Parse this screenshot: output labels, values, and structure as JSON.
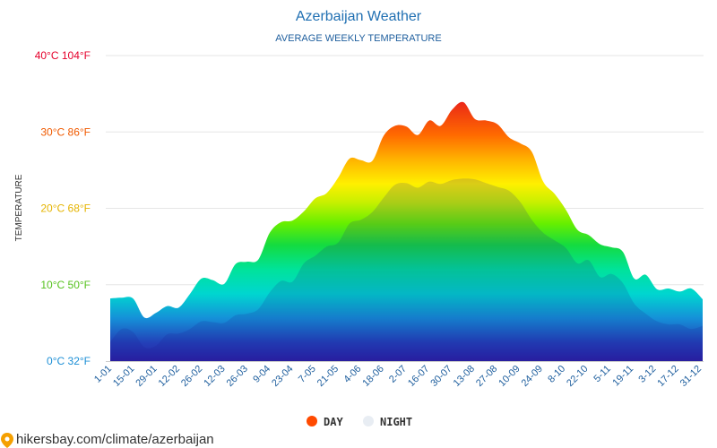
{
  "chart_data": {
    "type": "area",
    "title": "Azerbaijan Weather",
    "subtitle": "AVERAGE WEEKLY TEMPERATURE",
    "ylabel": "TEMPERATURE",
    "ylim": [
      0,
      40
    ],
    "grid": true,
    "y_ticks": [
      {
        "value": 0,
        "label": "0°C 32°F",
        "color": "#1c8fd6"
      },
      {
        "value": 10,
        "label": "10°C 50°F",
        "color": "#56c21e"
      },
      {
        "value": 20,
        "label": "20°C 68°F",
        "color": "#e5b400"
      },
      {
        "value": 30,
        "label": "30°C 86°F",
        "color": "#f05a00"
      },
      {
        "value": 40,
        "label": "40°C 104°F",
        "color": "#e5002b"
      }
    ],
    "x_labels": [
      "1-01",
      "15-01",
      "29-01",
      "12-02",
      "26-02",
      "12-03",
      "26-03",
      "9-04",
      "23-04",
      "7-05",
      "21-05",
      "4-06",
      "18-06",
      "2-07",
      "16-07",
      "30-07",
      "13-08",
      "27-08",
      "10-09",
      "24-09",
      "8-10",
      "22-10",
      "5-11",
      "19-11",
      "3-12",
      "17-12",
      "31-12"
    ],
    "legend_position": "bottom",
    "series": [
      {
        "name": "DAY",
        "color": "#ff4a00",
        "values": [
          8.2,
          8.3,
          8.2,
          5.7,
          6.3,
          7.2,
          7.0,
          8.8,
          10.8,
          10.6,
          10.1,
          12.7,
          13.0,
          13.3,
          16.8,
          18.2,
          18.4,
          19.6,
          21.3,
          22.0,
          24.0,
          26.5,
          26.3,
          26.2,
          29.5,
          30.8,
          30.7,
          29.6,
          31.5,
          30.8,
          32.9,
          33.9,
          31.7,
          31.5,
          31.0,
          29.3,
          28.5,
          27.4,
          23.5,
          21.9,
          19.8,
          17.2,
          16.5,
          15.3,
          14.9,
          14.3,
          10.8,
          11.3,
          9.4,
          9.5,
          9.1,
          9.5,
          8.1
        ]
      },
      {
        "name": "NIGHT",
        "color": "#e8edf3",
        "values": [
          2.5,
          4.2,
          3.8,
          1.8,
          2.0,
          3.5,
          3.6,
          4.2,
          5.2,
          5.1,
          5.0,
          6.0,
          6.2,
          6.8,
          9.0,
          10.5,
          10.4,
          12.8,
          13.8,
          15.0,
          15.5,
          18.0,
          18.5,
          19.5,
          21.4,
          23.1,
          23.3,
          22.7,
          23.5,
          23.2,
          23.7,
          23.9,
          23.8,
          23.3,
          22.8,
          22.3,
          20.8,
          18.5,
          16.8,
          15.8,
          14.8,
          12.8,
          13.2,
          11.0,
          11.4,
          10.2,
          7.5,
          6.2,
          5.2,
          4.8,
          4.8,
          4.2,
          4.6
        ]
      }
    ]
  },
  "watermark": "hikersbay.com/climate/azerbaijan"
}
